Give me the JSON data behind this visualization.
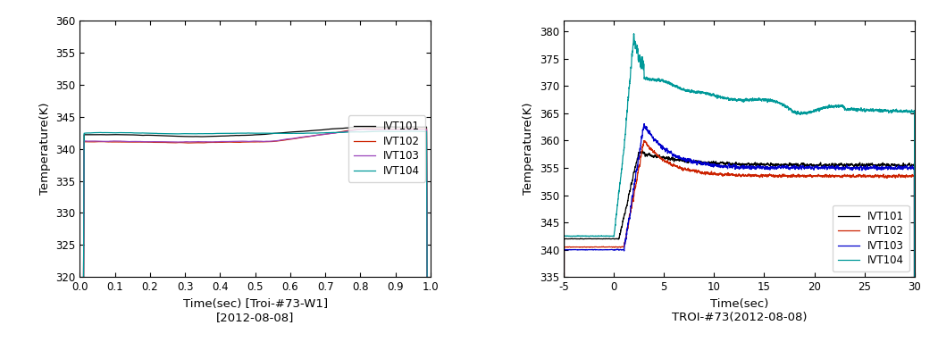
{
  "left": {
    "xlim": [
      0.0,
      1.0
    ],
    "ylim": [
      320,
      360
    ],
    "yticks": [
      320,
      325,
      330,
      335,
      340,
      345,
      350,
      355,
      360
    ],
    "xticks": [
      0.0,
      0.1,
      0.2,
      0.3,
      0.4,
      0.5,
      0.6,
      0.7,
      0.8,
      0.9,
      1.0
    ],
    "xlabel": "Time(sec) [Troi-#73-W1]\n[2012-08-08]",
    "ylabel": "Temperature(K)",
    "legend_labels": [
      "IVT101",
      "IVT102",
      "IVT103",
      "IVT104"
    ],
    "colors": [
      "#000000",
      "#cc2200",
      "#0000cc",
      "#009999"
    ],
    "color_ivt103_legend": "#cc9999"
  },
  "right": {
    "xlim": [
      -5,
      30
    ],
    "ylim": [
      335,
      382
    ],
    "yticks": [
      335,
      340,
      345,
      350,
      355,
      360,
      365,
      370,
      375,
      380
    ],
    "xticks": [
      -5,
      0,
      5,
      10,
      15,
      20,
      25,
      30
    ],
    "xlabel": "Time(sec)\nTROI-#73(2012-08-08)",
    "ylabel": "Temperature(K)",
    "legend_labels": [
      "IVT101",
      "IVT102",
      "IVT103",
      "IVT104"
    ],
    "colors": [
      "#000000",
      "#cc2200",
      "#0000cc",
      "#009999"
    ]
  }
}
